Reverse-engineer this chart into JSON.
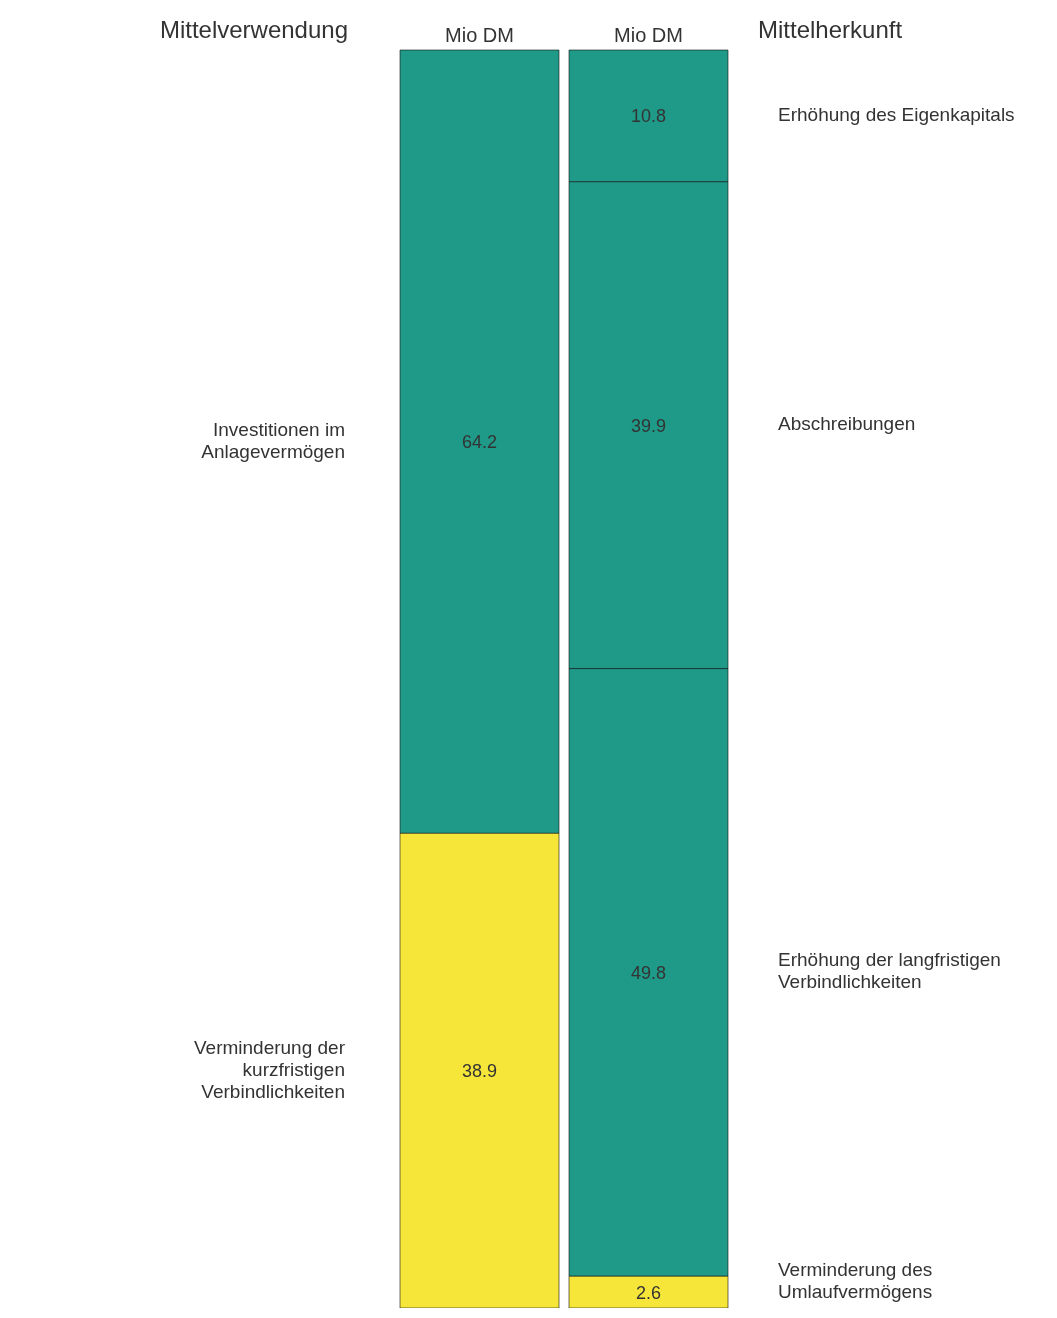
{
  "chart_data": {
    "type": "bar",
    "stacked": true,
    "data_labels": true,
    "categories": [
      "Mio DM",
      "Mio DM"
    ],
    "annotations": [
      "Mittelverwendung",
      "Mittelherkunft"
    ],
    "series": [
      {
        "name": "Investitionen im Anlagevermögen",
        "color": "#1f9a88",
        "values": [
          64.2,
          null
        ]
      },
      {
        "name": "Verminderung der kurzfristigen Verbindlichkeiten",
        "color": "#f7e63a",
        "values": [
          38.9,
          null
        ]
      },
      {
        "name": "Erhöhung des Eigenkapitals",
        "color": "#1f9a88",
        "values": [
          null,
          10.8
        ]
      },
      {
        "name": "Abschreibungen",
        "color": "#1f9a88",
        "values": [
          null,
          39.9
        ]
      },
      {
        "name": "Erhöhung der langfristigen Verbindlichkeiten",
        "color": "#1f9a88",
        "values": [
          null,
          49.8
        ]
      },
      {
        "name": "Verminderung des Umlaufvermögens",
        "color": "#f7e63a",
        "values": [
          null,
          2.6
        ]
      }
    ]
  }
}
